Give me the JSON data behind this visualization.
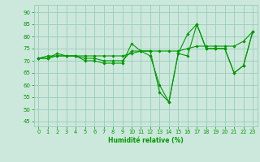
{
  "xlabel": "Humidité relative (%)",
  "xlim": [
    -0.5,
    23.5
  ],
  "ylim": [
    43,
    93
  ],
  "yticks": [
    45,
    50,
    55,
    60,
    65,
    70,
    75,
    80,
    85,
    90
  ],
  "xticks": [
    0,
    1,
    2,
    3,
    4,
    5,
    6,
    7,
    8,
    9,
    10,
    11,
    12,
    13,
    14,
    15,
    16,
    17,
    18,
    19,
    20,
    21,
    22,
    23
  ],
  "background_color": "#cce8dc",
  "grid_color": "#99ccb8",
  "line_color": "#009900",
  "series1": [
    71,
    71,
    73,
    72,
    72,
    70,
    70,
    69,
    69,
    69,
    77,
    74,
    72,
    60,
    53,
    73,
    81,
    85,
    75,
    75,
    75,
    65,
    68,
    82
  ],
  "series2": [
    71,
    72,
    72,
    72,
    72,
    71,
    71,
    70,
    70,
    70,
    74,
    74,
    74,
    57,
    53,
    73,
    72,
    85,
    75,
    75,
    75,
    65,
    68,
    82
  ],
  "series3": [
    71,
    71,
    72,
    72,
    72,
    72,
    72,
    72,
    72,
    72,
    73,
    74,
    74,
    74,
    74,
    74,
    75,
    76,
    76,
    76,
    76,
    76,
    78,
    82
  ]
}
